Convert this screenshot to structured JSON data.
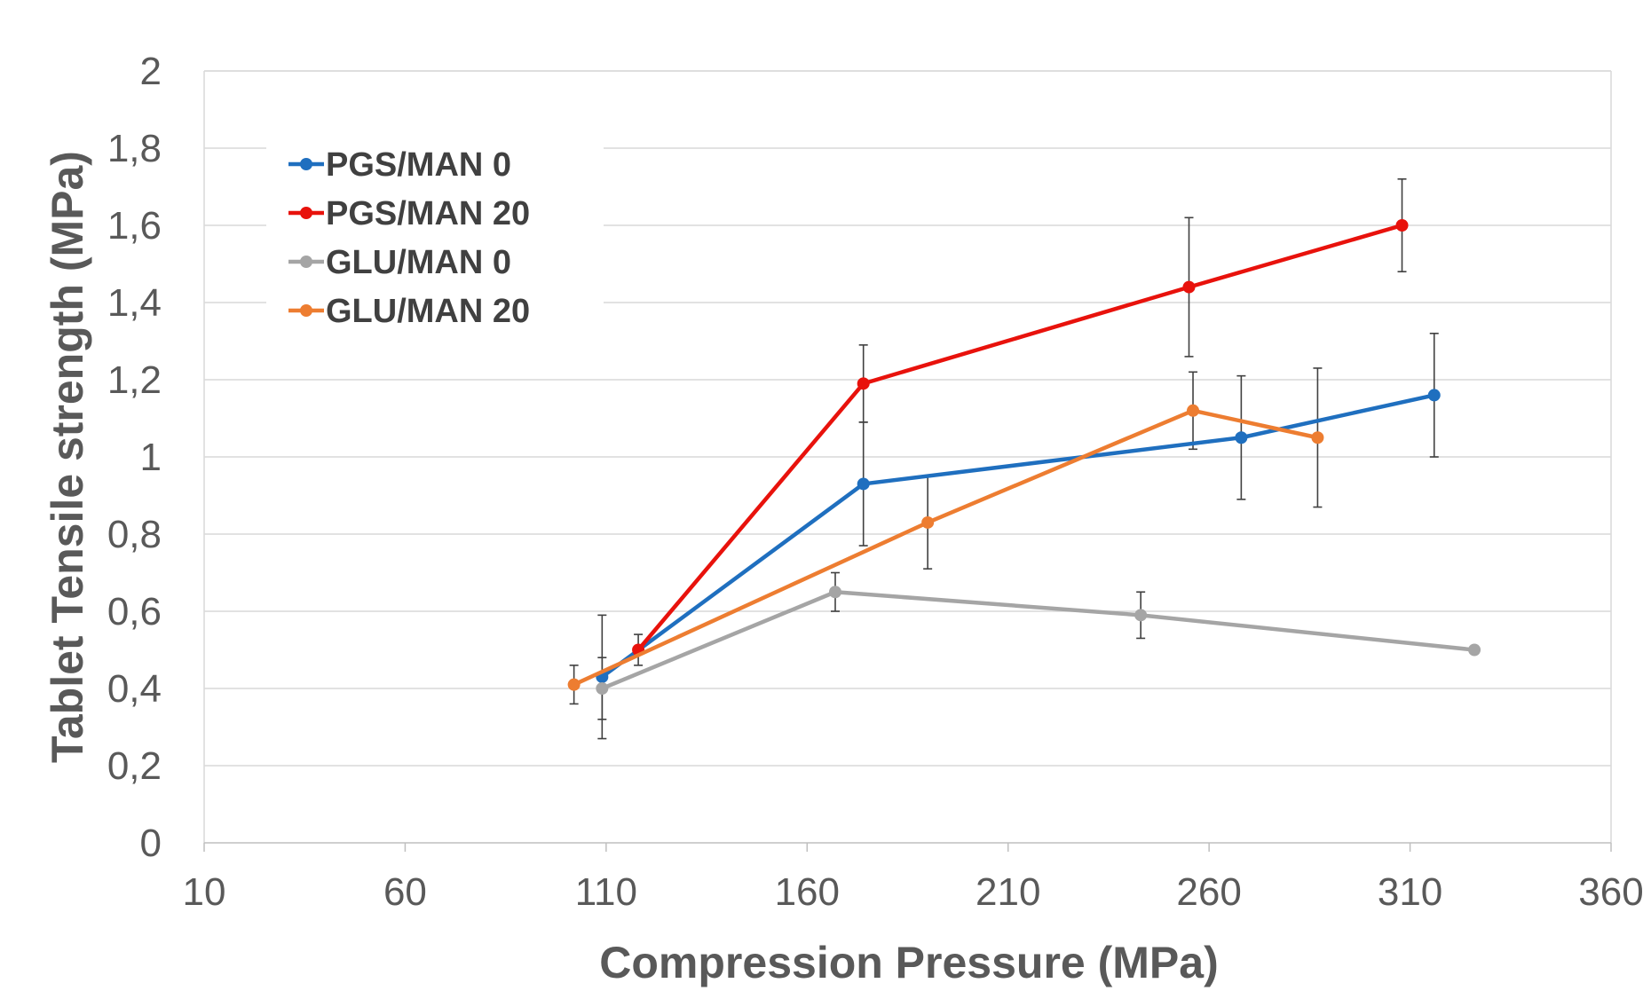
{
  "chart_data": {
    "type": "line",
    "xlabel": "Compression Pressure (MPa)",
    "ylabel": "Tablet Tensile strength (MPa)",
    "xlim": [
      10,
      360
    ],
    "ylim": [
      0,
      2
    ],
    "x_ticks": [
      10,
      60,
      110,
      160,
      210,
      260,
      310,
      360
    ],
    "x_tick_labels": [
      "10",
      "60",
      "110",
      "160",
      "210",
      "260",
      "310",
      "360"
    ],
    "y_ticks": [
      0,
      0.2,
      0.4,
      0.6,
      0.8,
      1,
      1.2,
      1.4,
      1.6,
      1.8,
      2
    ],
    "y_tick_labels": [
      "0",
      "0,2",
      "0,4",
      "0,6",
      "0,8",
      "1",
      "1,2",
      "1,4",
      "1,6",
      "1,8",
      "2"
    ],
    "grid": "horizontal",
    "legend": "top-left",
    "series": [
      {
        "name": "PGS/MAN 0",
        "color": "#1f6fbf",
        "x": [
          109,
          174,
          268,
          316
        ],
        "y": [
          0.43,
          0.93,
          1.05,
          1.16
        ],
        "error": [
          0.16,
          0.16,
          0.16,
          0.16
        ]
      },
      {
        "name": "PGS/MAN 20",
        "color": "#e8120c",
        "x": [
          118,
          174,
          255,
          308
        ],
        "y": [
          0.5,
          1.19,
          1.44,
          1.6
        ],
        "error": [
          0.04,
          0.1,
          0.18,
          0.12
        ]
      },
      {
        "name": "GLU/MAN 0",
        "color": "#a5a5a5",
        "x": [
          109,
          167,
          243,
          326
        ],
        "y": [
          0.4,
          0.65,
          0.59,
          0.5
        ],
        "error": [
          0.08,
          0.05,
          0.06,
          0
        ]
      },
      {
        "name": "GLU/MAN 20",
        "color": "#ed7d31",
        "x": [
          102,
          190,
          256,
          287
        ],
        "y": [
          0.41,
          0.83,
          1.12,
          1.05
        ],
        "error": [
          0.05,
          0.12,
          0.1,
          0.18
        ]
      }
    ]
  }
}
